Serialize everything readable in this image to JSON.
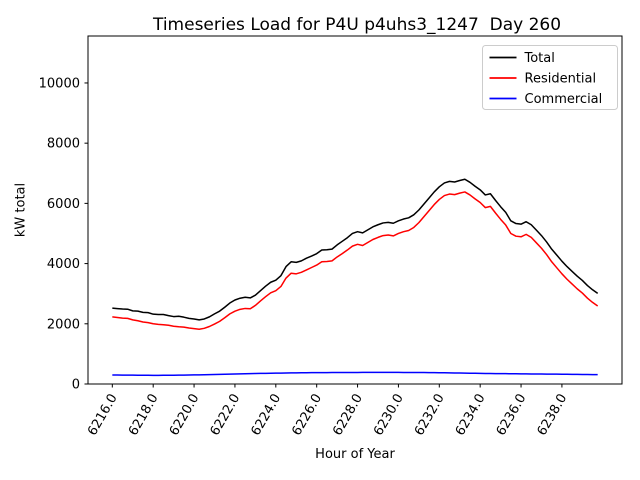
{
  "chart_data": {
    "type": "line",
    "title": "Timeseries Load for P4U p4uhs3_1247  Day 260",
    "xlabel": "Hour of Year",
    "ylabel": "kW total",
    "grid": false,
    "legend_position": "upper right",
    "xlim": [
      6214.81,
      6240.94
    ],
    "ylim": [
      0,
      11560
    ],
    "x_tick_values": [
      6216,
      6218,
      6220,
      6222,
      6224,
      6226,
      6228,
      6230,
      6232,
      6234,
      6236,
      6238
    ],
    "x_tick_labels": [
      "6216.0",
      "6218.0",
      "6220.0",
      "6222.0",
      "6224.0",
      "6226.0",
      "6228.0",
      "6230.0",
      "6232.0",
      "6234.0",
      "6236.0",
      "6238.0"
    ],
    "y_tick_values": [
      0,
      2000,
      4000,
      6000,
      8000,
      10000
    ],
    "y_tick_labels": [
      "0",
      "2000",
      "4000",
      "6000",
      "8000",
      "10000"
    ],
    "x": [
      6216,
      6216.25,
      6216.5,
      6216.75,
      6217,
      6217.25,
      6217.5,
      6217.75,
      6218,
      6218.25,
      6218.5,
      6218.75,
      6219,
      6219.25,
      6219.5,
      6219.75,
      6220,
      6220.25,
      6220.5,
      6220.75,
      6221,
      6221.25,
      6221.5,
      6221.75,
      6222,
      6222.25,
      6222.5,
      6222.75,
      6223,
      6223.25,
      6223.5,
      6223.75,
      6224,
      6224.25,
      6224.5,
      6224.75,
      6225,
      6225.25,
      6225.5,
      6225.75,
      6226,
      6226.25,
      6226.5,
      6226.75,
      6227,
      6227.25,
      6227.5,
      6227.75,
      6228,
      6228.25,
      6228.5,
      6228.75,
      6229,
      6229.25,
      6229.5,
      6229.75,
      6230,
      6230.25,
      6230.5,
      6230.75,
      6231,
      6231.25,
      6231.5,
      6231.75,
      6232,
      6232.25,
      6232.5,
      6232.75,
      6233,
      6233.25,
      6233.5,
      6233.75,
      6234,
      6234.25,
      6234.5,
      6234.75,
      6235,
      6235.25,
      6235.5,
      6235.75,
      6236,
      6236.25,
      6236.5,
      6236.75,
      6237,
      6237.25,
      6237.5,
      6237.75,
      6238,
      6238.25,
      6238.5,
      6238.75,
      6239,
      6239.25,
      6239.5,
      6239.75
    ],
    "series": [
      {
        "name": "Total",
        "color": "#000000",
        "values": [
          2520,
          2505,
          2490,
          2485,
          2430,
          2420,
          2380,
          2370,
          2320,
          2310,
          2310,
          2270,
          2240,
          2250,
          2220,
          2180,
          2160,
          2130,
          2160,
          2230,
          2330,
          2420,
          2550,
          2690,
          2790,
          2850,
          2880,
          2860,
          2950,
          3100,
          3250,
          3380,
          3450,
          3600,
          3900,
          4060,
          4040,
          4090,
          4180,
          4250,
          4330,
          4450,
          4460,
          4480,
          4620,
          4740,
          4860,
          5000,
          5060,
          5020,
          5120,
          5220,
          5290,
          5350,
          5370,
          5340,
          5420,
          5480,
          5520,
          5620,
          5780,
          5980,
          6180,
          6380,
          6550,
          6680,
          6730,
          6710,
          6760,
          6800,
          6700,
          6570,
          6450,
          6280,
          6320,
          6100,
          5890,
          5700,
          5420,
          5330,
          5310,
          5390,
          5290,
          5110,
          4930,
          4720,
          4480,
          4280,
          4080,
          3900,
          3740,
          3580,
          3440,
          3270,
          3130,
          3010
        ]
      },
      {
        "name": "Residential",
        "color": "#ff0000",
        "values": [
          2230,
          2210,
          2190,
          2180,
          2130,
          2100,
          2060,
          2040,
          2000,
          1980,
          1970,
          1950,
          1920,
          1900,
          1890,
          1860,
          1840,
          1820,
          1850,
          1910,
          1990,
          2080,
          2200,
          2330,
          2420,
          2480,
          2510,
          2500,
          2610,
          2760,
          2900,
          3030,
          3100,
          3240,
          3520,
          3680,
          3660,
          3710,
          3790,
          3870,
          3950,
          4060,
          4070,
          4090,
          4220,
          4330,
          4450,
          4580,
          4640,
          4600,
          4700,
          4800,
          4870,
          4930,
          4950,
          4920,
          5000,
          5060,
          5100,
          5200,
          5360,
          5560,
          5760,
          5960,
          6130,
          6260,
          6310,
          6290,
          6340,
          6380,
          6280,
          6150,
          6030,
          5860,
          5900,
          5680,
          5470,
          5280,
          5000,
          4910,
          4890,
          4970,
          4870,
          4690,
          4510,
          4300,
          4060,
          3860,
          3660,
          3480,
          3320,
          3160,
          3020,
          2850,
          2710,
          2590
        ]
      },
      {
        "name": "Commercial",
        "color": "#0000ff",
        "values": [
          300,
          298,
          296,
          295,
          293,
          291,
          290,
          289,
          288,
          288,
          289,
          290,
          292,
          294,
          296,
          299,
          302,
          305,
          308,
          312,
          316,
          320,
          324,
          328,
          332,
          336,
          340,
          344,
          348,
          351,
          354,
          357,
          360,
          363,
          366,
          368,
          370,
          372,
          374,
          376,
          377,
          378,
          379,
          380,
          381,
          382,
          383,
          384,
          384,
          385,
          385,
          386,
          386,
          386,
          386,
          385,
          385,
          384,
          383,
          382,
          381,
          380,
          378,
          376,
          374,
          372,
          370,
          367,
          364,
          361,
          358,
          355,
          352,
          350,
          348,
          346,
          345,
          343,
          341,
          339,
          337,
          336,
          334,
          332,
          331,
          330,
          328,
          327,
          325,
          323,
          321,
          319,
          317,
          315,
          313,
          311
        ]
      }
    ]
  }
}
